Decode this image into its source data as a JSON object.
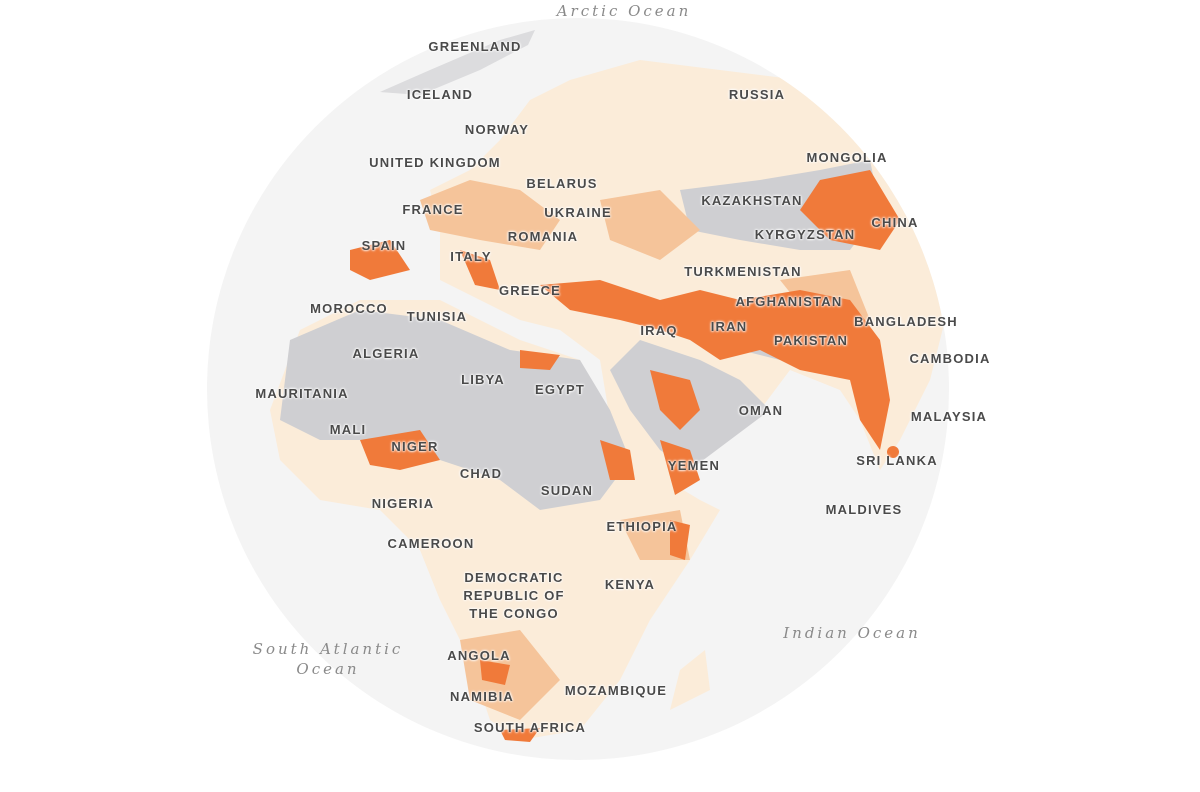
{
  "colors": {
    "high": "#f07a3a",
    "medium": "#f5c49a",
    "low": "#fbecd9",
    "no_data": "#cfcfd2",
    "globe": "#f4f4f4",
    "background": "#ffffff"
  },
  "oceans": {
    "arctic": "Arctic Ocean",
    "south_atlantic": "South Atlantic Ocean",
    "indian": "Indian Ocean"
  },
  "countries": {
    "greenland": "GREENLAND",
    "iceland": "ICELAND",
    "russia": "RUSSIA",
    "norway": "NORWAY",
    "united_kingdom": "UNITED KINGDOM",
    "mongolia": "MONGOLIA",
    "belarus": "BELARUS",
    "france": "FRANCE",
    "ukraine": "UKRAINE",
    "kazakhstan": "KAZAKHSTAN",
    "china": "CHINA",
    "spain": "SPAIN",
    "romania": "ROMANIA",
    "kyrgyzstan": "KYRGYZSTAN",
    "italy": "ITALY",
    "turkmenistan": "TURKMENISTAN",
    "greece": "GREECE",
    "afghanistan": "AFGHANISTAN",
    "morocco": "MOROCCO",
    "tunisia": "TUNISIA",
    "iraq": "IRAQ",
    "iran": "IRAN",
    "bangladesh": "BANGLADESH",
    "algeria": "ALGERIA",
    "pakistan": "PAKISTAN",
    "cambodia": "CAMBODIA",
    "libya": "LIBYA",
    "egypt": "EGYPT",
    "mauritania": "MAURITANIA",
    "oman": "OMAN",
    "malaysia": "MALAYSIA",
    "mali": "MALI",
    "niger": "NIGER",
    "chad": "CHAD",
    "yemen": "YEMEN",
    "sri_lanka": "SRI LANKA",
    "sudan": "SUDAN",
    "nigeria": "NIGERIA",
    "maldives": "MALDIVES",
    "ethiopia": "ETHIOPIA",
    "cameroon": "CAMEROON",
    "drc": "DEMOCRATIC REPUBLIC OF THE CONGO",
    "kenya": "KENYA",
    "angola": "ANGOLA",
    "namibia": "NAMIBIA",
    "mozambique": "MOZAMBIQUE",
    "south_africa": "SOUTH AFRICA"
  }
}
